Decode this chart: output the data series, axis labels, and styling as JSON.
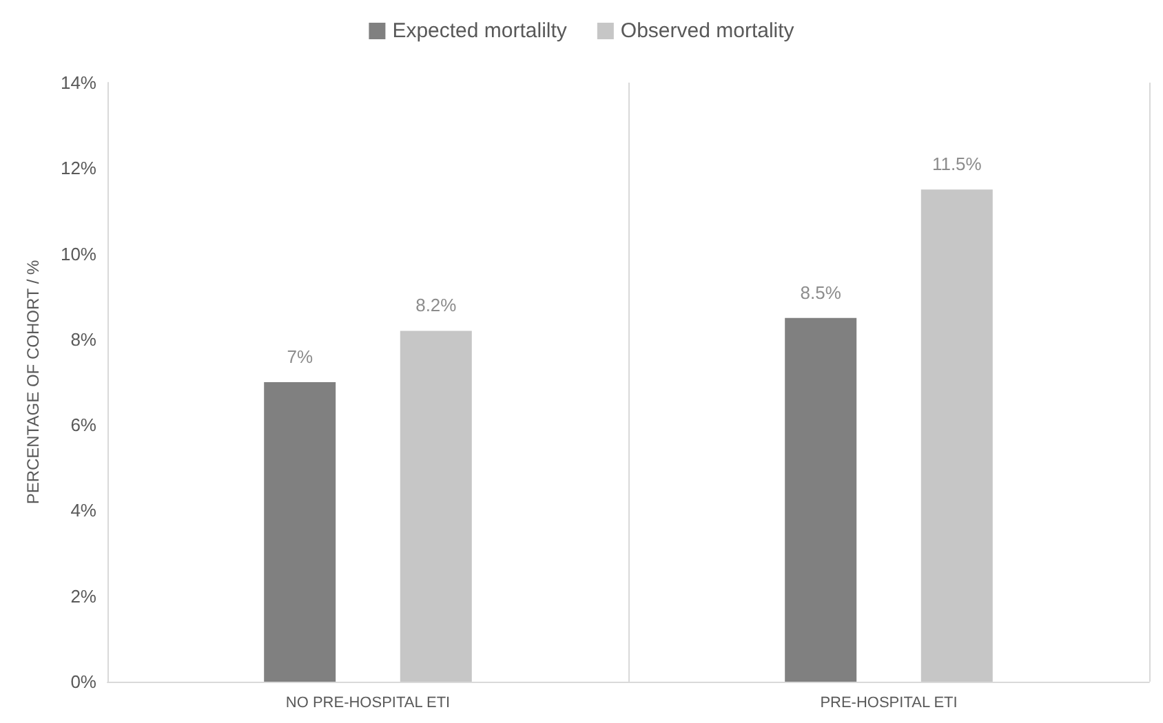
{
  "chart_data": {
    "type": "bar",
    "ylabel": "PERCENTAGE OF COHORT / %",
    "categories": [
      "NO PRE-HOSPITAL ETI",
      "PRE-HOSPITAL ETI"
    ],
    "series": [
      {
        "name": "Expected mortalilty",
        "color": "#808080",
        "values": [
          7,
          8.5
        ],
        "value_labels": [
          "7%",
          "8.5%"
        ]
      },
      {
        "name": "Observed mortality",
        "color": "#c6c6c6",
        "values": [
          8.2,
          11.5
        ],
        "value_labels": [
          "8.2%",
          "11.5%"
        ]
      }
    ],
    "ylim": [
      0,
      14
    ],
    "yticks": [
      {
        "value": 0,
        "label": "0%"
      },
      {
        "value": 2,
        "label": "2%"
      },
      {
        "value": 4,
        "label": "4%"
      },
      {
        "value": 6,
        "label": "6%"
      },
      {
        "value": 8,
        "label": "8%"
      },
      {
        "value": 10,
        "label": "10%"
      },
      {
        "value": 12,
        "label": "12%"
      },
      {
        "value": 14,
        "label": "14%"
      }
    ],
    "grid": "x",
    "legend": "top"
  }
}
